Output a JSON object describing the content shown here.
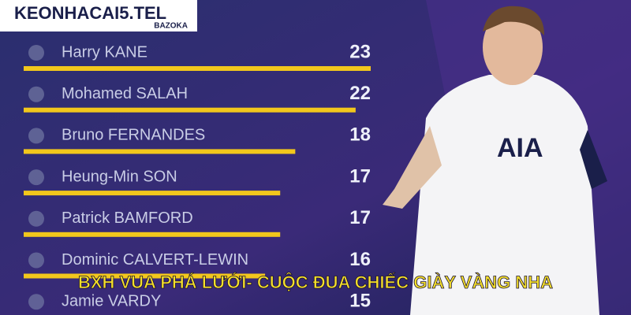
{
  "logo": {
    "brand": "KEONHACAI5.TEL",
    "tagline": "BAZOKA"
  },
  "banner": "BXH VUA PHÁ LƯỚI- CUỘC ĐUA CHIẾC GIÀY VÀNG NHA",
  "chart_data": {
    "type": "bar",
    "categories": [
      "Harry KANE",
      "Mohamed SALAH",
      "Bruno FERNANDES",
      "Heung-Min SON",
      "Patrick BAMFORD",
      "Dominic CALVERT-LEWIN",
      "Jamie VARDY"
    ],
    "values": [
      23,
      22,
      18,
      17,
      17,
      16,
      15
    ],
    "color": "#f2c71c"
  }
}
